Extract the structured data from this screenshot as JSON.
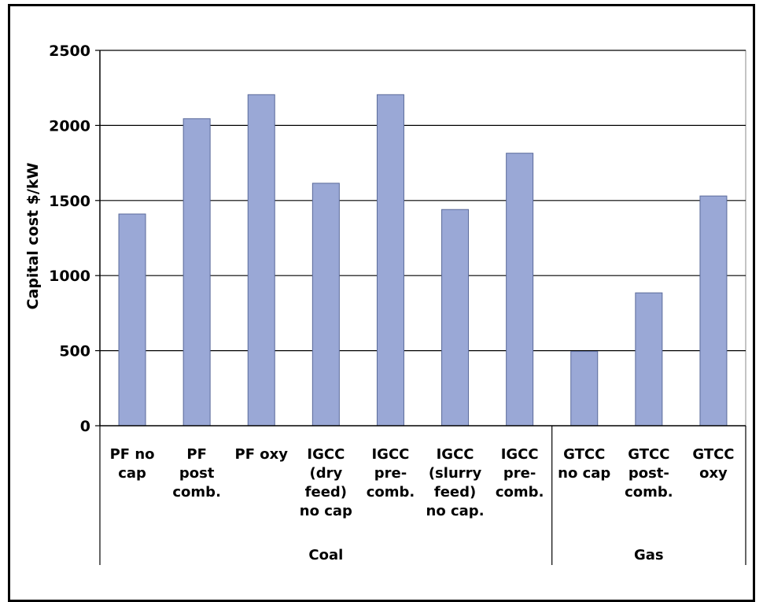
{
  "chart_data": {
    "type": "bar",
    "ylabel": "Capital cost  $/kW",
    "ylim": [
      0,
      2500
    ],
    "yticks": [
      0,
      500,
      1000,
      1500,
      2000,
      2500
    ],
    "grid": true,
    "bar_color": "#9aa8d6",
    "categories": [
      [
        "PF no",
        "cap"
      ],
      [
        "PF",
        "post",
        "comb."
      ],
      [
        "PF oxy"
      ],
      [
        "IGCC",
        "(dry",
        "feed)",
        "no cap"
      ],
      [
        "IGCC",
        "pre-",
        "comb."
      ],
      [
        "IGCC",
        "(slurry",
        "feed)",
        "no cap."
      ],
      [
        "IGCC",
        "pre-",
        "comb."
      ],
      [
        "GTCC",
        "no cap"
      ],
      [
        "GTCC",
        "post-",
        "comb."
      ],
      [
        "GTCC",
        "oxy"
      ]
    ],
    "values": [
      1410,
      2045,
      2205,
      1615,
      2205,
      1440,
      1815,
      495,
      885,
      1530
    ],
    "groups": [
      {
        "label": "Coal",
        "count": 7
      },
      {
        "label": "Gas",
        "count": 3
      }
    ]
  }
}
